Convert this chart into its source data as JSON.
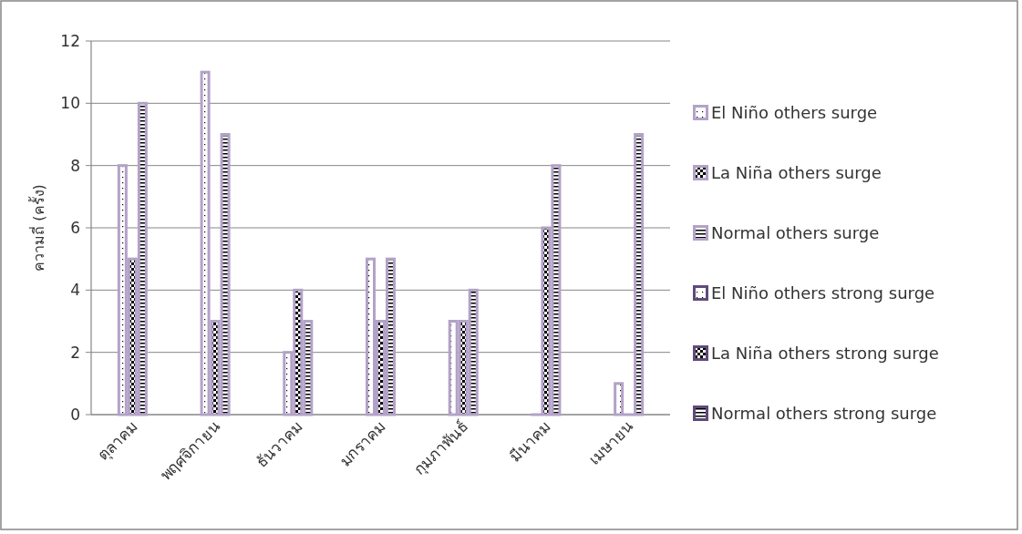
{
  "chart_data": {
    "type": "bar",
    "ylabel": "ความถี่ (ครั้ง)",
    "categories": [
      "ตุลาคม",
      "พฤศจิกายน",
      "ธันวาคม",
      "มกราคม",
      "กุมภาพันธ์",
      "มีนาคม",
      "เมษายน"
    ],
    "series": [
      {
        "name": "El Niño others  surge",
        "color": "#b3a2c7",
        "values": [
          8,
          11,
          2,
          5,
          3,
          0,
          1
        ]
      },
      {
        "name": "La Niña others surge",
        "color": "#b3a2c7",
        "values": [
          5,
          3,
          4,
          3,
          3,
          6,
          0
        ]
      },
      {
        "name": "Normal others surge",
        "color": "#b3a2c7",
        "values": [
          10,
          9,
          3,
          5,
          4,
          8,
          9
        ]
      },
      {
        "name": "El Niño others strong surge",
        "color": "#604a7b",
        "values": [
          null,
          null,
          null,
          null,
          null,
          null,
          null
        ]
      },
      {
        "name": "La Niña others strong surge",
        "color": "#604a7b",
        "values": [
          null,
          null,
          null,
          null,
          null,
          null,
          null
        ]
      },
      {
        "name": "Normal others strong surge",
        "color": "#604a7b",
        "values": [
          null,
          null,
          null,
          null,
          null,
          null,
          null
        ]
      }
    ],
    "ylim": [
      0,
      12
    ],
    "yticks": [
      0,
      2,
      4,
      6,
      8,
      10,
      12
    ],
    "grid": "y",
    "legend": "right"
  }
}
